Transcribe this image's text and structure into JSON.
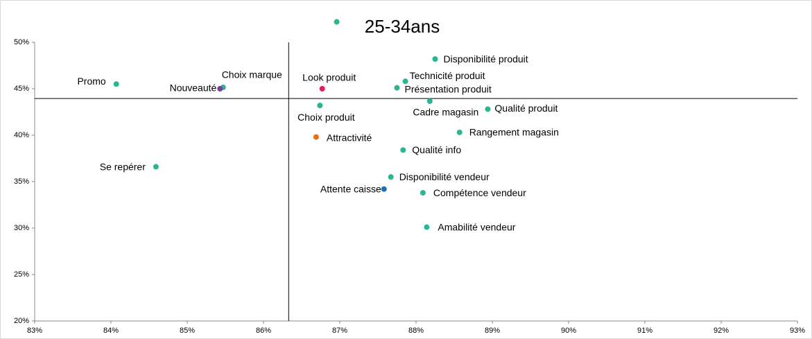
{
  "chart_data": {
    "type": "scatter",
    "title": "25-34ans",
    "labels": [
      null,
      "Disponibilité produit",
      "Technicité produit",
      "Présentation produit",
      "Look produit",
      "Promo",
      "Choix marque",
      "Nouveauté",
      "Cadre magasin",
      "Qualité produit",
      "Rangement magasin",
      "Qualité info",
      "Choix produit",
      "Attractivité",
      "Disponibilité vendeur",
      "Attente caisse",
      "Compétence vendeur",
      "Amabilité vendeur",
      "Se repérer"
    ],
    "x": [
      86.96,
      88.25,
      87.86,
      87.75,
      86.77,
      84.07,
      85.47,
      85.43,
      88.18,
      88.94,
      88.57,
      87.83,
      86.74,
      86.69,
      87.67,
      87.58,
      88.09,
      88.14,
      84.59
    ],
    "y": [
      52.2,
      48.2,
      45.8,
      45.1,
      45.0,
      45.5,
      45.15,
      45.0,
      43.66,
      42.8,
      40.3,
      38.4,
      43.2,
      39.8,
      35.5,
      34.2,
      33.8,
      30.1,
      36.6
    ],
    "colors": [
      "#2bb592",
      "#2bb592",
      "#2bb592",
      "#2bb592",
      "#e8196b",
      "#2bb592",
      "#2bb592",
      "#7b3f9e",
      "#2bb592",
      "#2bb592",
      "#2bb592",
      "#2bb592",
      "#2bb592",
      "#e0711c",
      "#2bb592",
      "#1f6fb5",
      "#2bb592",
      "#2bb592",
      "#2bb592"
    ],
    "reference_lines": {
      "x": 86.33,
      "y": 43.95
    },
    "xlim": [
      83,
      93
    ],
    "xticks": [
      {
        "value": 83,
        "label": "83%"
      },
      {
        "value": 84,
        "label": "84%"
      },
      {
        "value": 85,
        "label": "85%"
      },
      {
        "value": 86,
        "label": "86%"
      },
      {
        "value": 87,
        "label": "87%"
      },
      {
        "value": 88,
        "label": "88%"
      },
      {
        "value": 89,
        "label": "89%"
      },
      {
        "value": 90,
        "label": "90%"
      },
      {
        "value": 91,
        "label": "91%"
      },
      {
        "value": 92,
        "label": "92%"
      },
      {
        "value": 93,
        "label": "93%"
      }
    ],
    "ylim": [
      20,
      50
    ],
    "yticks": [
      {
        "value": 20,
        "label": "20%"
      },
      {
        "value": 25,
        "label": "25%"
      },
      {
        "value": 30,
        "label": "30%"
      },
      {
        "value": 35,
        "label": "35%"
      },
      {
        "value": 40,
        "label": "40%"
      },
      {
        "value": 45,
        "label": "45%"
      },
      {
        "value": 50,
        "label": "50%"
      }
    ],
    "grid": false
  }
}
